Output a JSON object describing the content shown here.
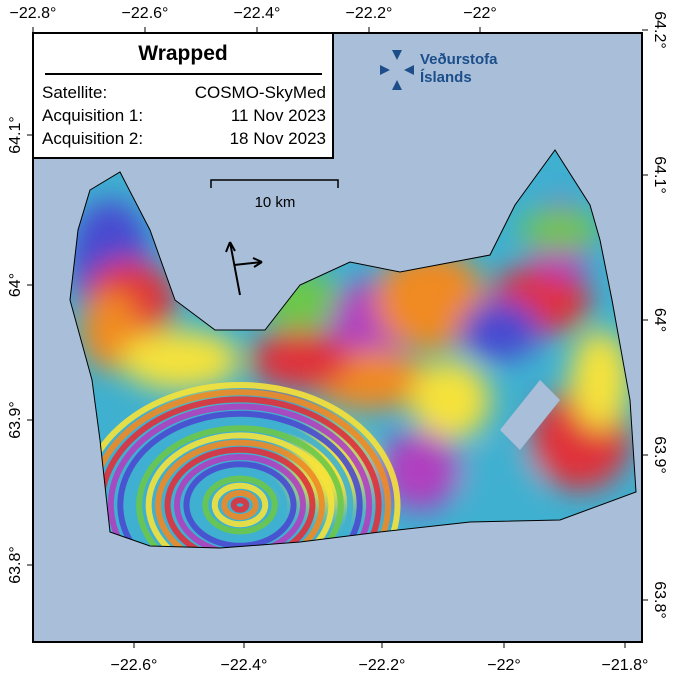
{
  "info_box": {
    "title": "Wrapped",
    "rows": [
      [
        "Satellite:",
        "COSMO-SkyMed"
      ],
      [
        "Acquisition 1:",
        "11 Nov 2023"
      ],
      [
        "Acquisition 2:",
        "18 Nov 2023"
      ]
    ]
  },
  "logo": {
    "line1": "Veðurstofa",
    "line2": "Íslands"
  },
  "scale_bar": "10 km",
  "axes": {
    "top": [
      "−22.8°",
      "−22.6°",
      "−22.4°",
      "−22.2°",
      "−22°"
    ],
    "bottom": [
      "−22.6°",
      "−22.4°",
      "−22.2°",
      "−22°",
      "−21.8°"
    ],
    "left": [
      "64.1°",
      "64°",
      "63.9°",
      "63.8°"
    ],
    "right": [
      "64.2°",
      "64.1°",
      "64°",
      "63.9°",
      "63.8°"
    ]
  }
}
